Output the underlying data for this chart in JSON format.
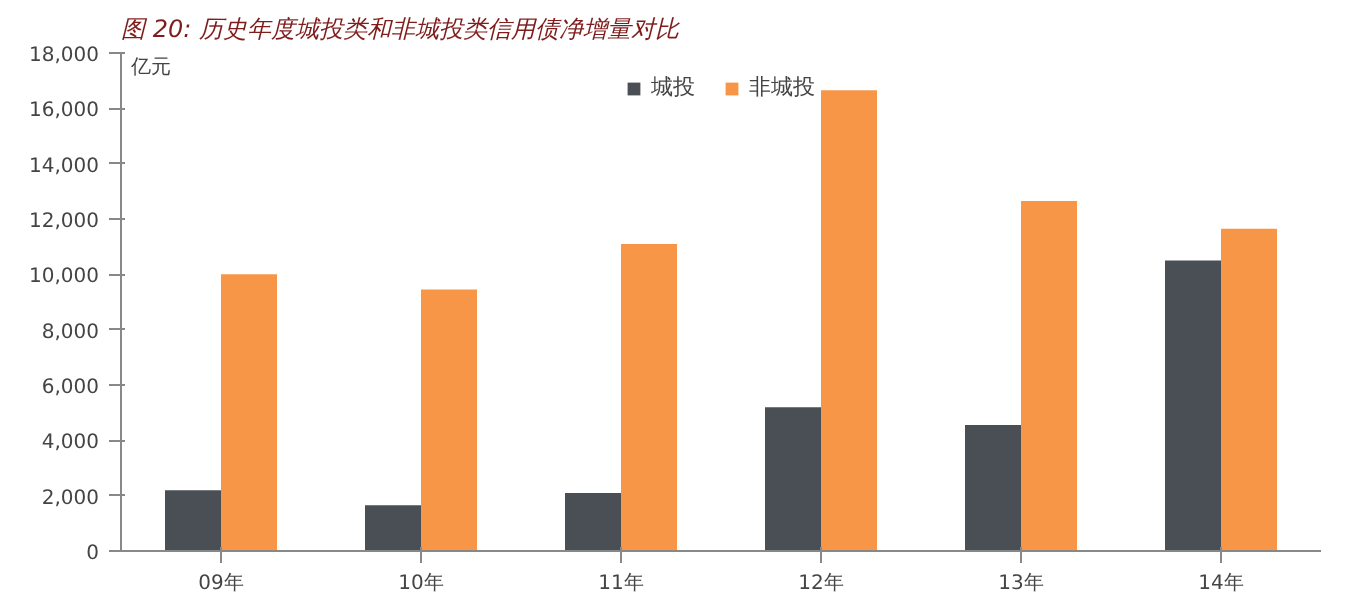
{
  "chart_data": {
    "type": "bar",
    "title": "图 20: 历史年度城投类和非城投类信用债净增量对比",
    "ylabel": "亿元",
    "categories": [
      "09年",
      "10年",
      "11年",
      "12年",
      "13年",
      "14年"
    ],
    "series": [
      {
        "name": "城投",
        "color": "#4a4f55",
        "values": [
          2200,
          1650,
          2100,
          5200,
          4550,
          10500
        ]
      },
      {
        "name": "非城投",
        "color": "#f79646",
        "values": [
          10000,
          9450,
          11100,
          16650,
          12650,
          11650
        ]
      }
    ],
    "ylim": [
      0,
      18000
    ],
    "yticks": [
      {
        "value": 0,
        "label": "0"
      },
      {
        "value": 2000,
        "label": "2,000"
      },
      {
        "value": 4000,
        "label": "4,000"
      },
      {
        "value": 6000,
        "label": "6,000"
      },
      {
        "value": 8000,
        "label": "8,000"
      },
      {
        "value": 10000,
        "label": "10,000"
      },
      {
        "value": 12000,
        "label": "12,000"
      },
      {
        "value": 14000,
        "label": "14,000"
      },
      {
        "value": 16000,
        "label": "16,000"
      },
      {
        "value": 18000,
        "label": "18,000"
      }
    ],
    "grid": false,
    "legend": "top"
  }
}
